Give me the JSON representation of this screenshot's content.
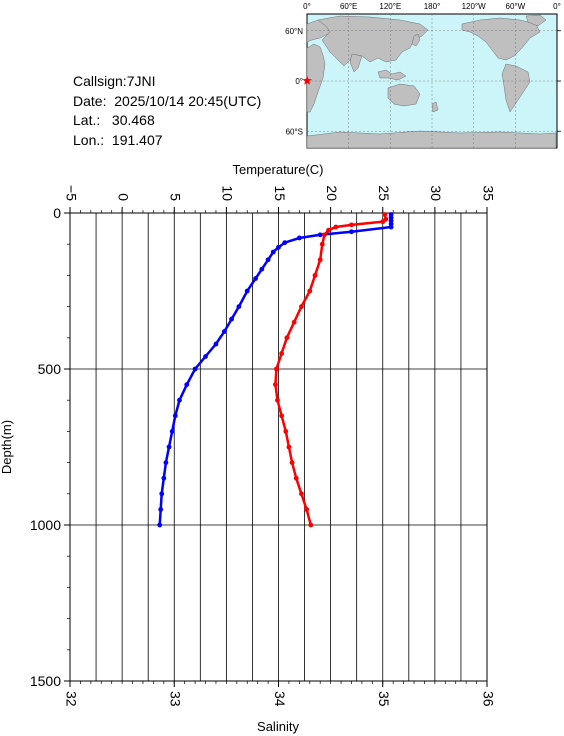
{
  "station": {
    "callsign": "Callsign:7JNI",
    "date": "Date:  2025/10/14 20:45(UTC)",
    "lat": "Lat.:   30.468",
    "lon": "Lon.:  191.407"
  },
  "map": {
    "top_labels": [
      "0°",
      "60°E",
      "120°E",
      "180°",
      "120°W",
      "60°W",
      "0°"
    ],
    "left_labels": [
      "60°N",
      "0°",
      "60°S"
    ],
    "land_color": "#bfbfbf",
    "ocean_color": "#ccf5fa",
    "marker_icon": "red-star-icon",
    "marker_color": "#ff0000"
  },
  "chart_data": {
    "type": "line",
    "ylabel": "Depth(m)",
    "ylim": [
      1500,
      0
    ],
    "yticks": [
      "0",
      "500",
      "1000",
      "1500"
    ],
    "temperature_axis": {
      "label": "Temperature(C)",
      "range": [
        -5,
        35
      ],
      "ticks": [
        "−5",
        "0",
        "5",
        "10",
        "15",
        "20",
        "25",
        "30",
        "35"
      ]
    },
    "salinity_axis": {
      "label": "Salinity",
      "range": [
        32,
        36
      ],
      "ticks": [
        "32",
        "33",
        "34",
        "35",
        "36"
      ]
    },
    "grid": true,
    "series": [
      {
        "color": "#0000ff",
        "axis": "temperature",
        "points": [
          [
            25.8,
            5
          ],
          [
            25.8,
            15
          ],
          [
            25.8,
            25
          ],
          [
            25.8,
            35
          ],
          [
            25.8,
            45
          ],
          [
            22,
            60
          ],
          [
            19,
            70
          ],
          [
            17,
            80
          ],
          [
            15.6,
            95
          ],
          [
            15,
            110
          ],
          [
            14.5,
            125
          ],
          [
            14,
            150
          ],
          [
            13.4,
            180
          ],
          [
            12.8,
            210
          ],
          [
            12,
            250
          ],
          [
            11.2,
            300
          ],
          [
            10.5,
            340
          ],
          [
            9.8,
            380
          ],
          [
            9,
            420
          ],
          [
            8,
            460
          ],
          [
            7,
            500
          ],
          [
            6.2,
            550
          ],
          [
            5.5,
            600
          ],
          [
            5.1,
            650
          ],
          [
            4.8,
            700
          ],
          [
            4.5,
            750
          ],
          [
            4.2,
            800
          ],
          [
            4,
            850
          ],
          [
            3.8,
            900
          ],
          [
            3.7,
            950
          ],
          [
            3.6,
            1000
          ]
        ]
      },
      {
        "color": "#ff0000",
        "axis": "salinity",
        "points": [
          [
            35.02,
            5
          ],
          [
            35.03,
            20
          ],
          [
            35,
            28
          ],
          [
            34.7,
            38
          ],
          [
            34.55,
            45
          ],
          [
            34.48,
            55
          ],
          [
            34.44,
            70
          ],
          [
            34.42,
            100
          ],
          [
            34.4,
            150
          ],
          [
            34.35,
            200
          ],
          [
            34.3,
            250
          ],
          [
            34.22,
            300
          ],
          [
            34.15,
            350
          ],
          [
            34.08,
            400
          ],
          [
            34.03,
            450
          ],
          [
            33.98,
            500
          ],
          [
            33.97,
            550
          ],
          [
            33.99,
            600
          ],
          [
            34.03,
            650
          ],
          [
            34.07,
            700
          ],
          [
            34.1,
            750
          ],
          [
            34.13,
            800
          ],
          [
            34.17,
            850
          ],
          [
            34.22,
            900
          ],
          [
            34.27,
            950
          ],
          [
            34.31,
            1000
          ]
        ]
      }
    ]
  }
}
